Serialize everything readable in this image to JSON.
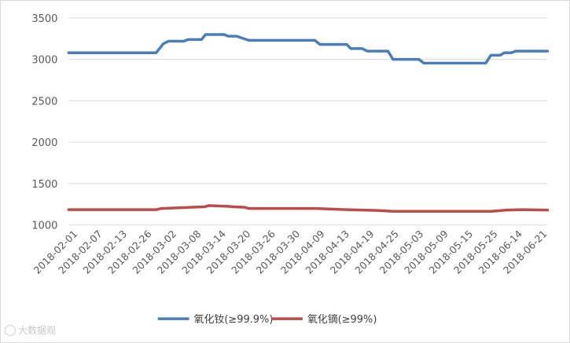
{
  "chart_data": {
    "type": "line",
    "title": "",
    "xlabel": "",
    "ylabel": "",
    "ylim": [
      1000,
      3500
    ],
    "y_ticks": [
      1000,
      1500,
      2000,
      2500,
      3000,
      3500
    ],
    "grid": true,
    "legend_position": "bottom",
    "x_tick_labels": [
      "2018-02-01",
      "2018-02-07",
      "2018-02-13",
      "2018-02-26",
      "2018-03-02",
      "2018-03-08",
      "2018-03-14",
      "2018-03-20",
      "2018-03-26",
      "2018-03-30",
      "2018-04-09",
      "2018-04-13",
      "2018-04-19",
      "2018-04-25",
      "2018-05-03",
      "2018-05-09",
      "2018-05-15",
      "2018-05-25",
      "2018-06-14",
      "2018-06-21"
    ],
    "series": [
      {
        "name": "氧化钕(≥99.9%)",
        "color": "#4a7ebb",
        "points": [
          [
            0,
            3080
          ],
          [
            8.5,
            3080
          ],
          [
            9.2,
            3190
          ],
          [
            9.7,
            3220
          ],
          [
            11.2,
            3220
          ],
          [
            11.6,
            3240
          ],
          [
            12.9,
            3240
          ],
          [
            13.3,
            3300
          ],
          [
            15.1,
            3300
          ],
          [
            15.5,
            3280
          ],
          [
            16.3,
            3280
          ],
          [
            17.5,
            3230
          ],
          [
            23.9,
            3230
          ],
          [
            24.4,
            3180
          ],
          [
            27.0,
            3180
          ],
          [
            27.4,
            3130
          ],
          [
            28.5,
            3130
          ],
          [
            29.0,
            3100
          ],
          [
            31.0,
            3100
          ],
          [
            31.5,
            3000
          ],
          [
            34.0,
            3000
          ],
          [
            34.5,
            2955
          ],
          [
            40.5,
            2955
          ],
          [
            41.0,
            3050
          ],
          [
            41.9,
            3050
          ],
          [
            42.3,
            3080
          ],
          [
            43.0,
            3080
          ],
          [
            43.4,
            3100
          ],
          [
            46.5,
            3100
          ]
        ]
      },
      {
        "name": "氧化镝(≥99%)",
        "color": "#be4b48",
        "points": [
          [
            0,
            1185
          ],
          [
            8.5,
            1185
          ],
          [
            9.0,
            1200
          ],
          [
            11.2,
            1210
          ],
          [
            12.0,
            1215
          ],
          [
            13.2,
            1220
          ],
          [
            13.6,
            1235
          ],
          [
            14.4,
            1230
          ],
          [
            15.5,
            1225
          ],
          [
            16.0,
            1220
          ],
          [
            17.0,
            1215
          ],
          [
            17.5,
            1200
          ],
          [
            24.0,
            1200
          ],
          [
            25.0,
            1195
          ],
          [
            27.0,
            1185
          ],
          [
            28.5,
            1180
          ],
          [
            30.0,
            1175
          ],
          [
            31.5,
            1165
          ],
          [
            41.0,
            1165
          ],
          [
            42.5,
            1180
          ],
          [
            44.0,
            1185
          ],
          [
            46.5,
            1180
          ]
        ]
      }
    ]
  },
  "watermark": {
    "text": "大数据观"
  }
}
